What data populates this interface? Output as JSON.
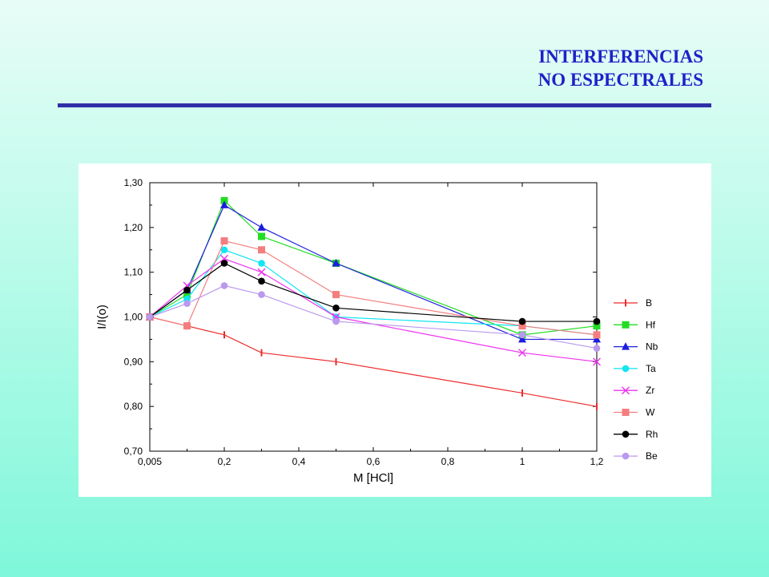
{
  "header": {
    "title_line1": "INTERFERENCIAS",
    "title_line2": "NO ESPECTRALES"
  },
  "colors": {
    "title": "#2020c8",
    "rule": "#2f2fa8"
  },
  "chart_data": {
    "type": "line",
    "xlabel": "M [HCl]",
    "ylabel": "I/I(o)",
    "xlim": [
      0,
      1.2
    ],
    "ylim": [
      0.7,
      1.3
    ],
    "x_ticks": [
      {
        "value": 0,
        "label": "0,005"
      },
      {
        "value": 0.2,
        "label": "0,2"
      },
      {
        "value": 0.4,
        "label": "0,4"
      },
      {
        "value": 0.6,
        "label": "0,6"
      },
      {
        "value": 0.8,
        "label": "0,8"
      },
      {
        "value": 1.0,
        "label": "1"
      },
      {
        "value": 1.2,
        "label": "1,2"
      }
    ],
    "y_ticks": [
      {
        "value": 0.7,
        "label": "0,70"
      },
      {
        "value": 0.8,
        "label": "0,80"
      },
      {
        "value": 0.9,
        "label": "0,90"
      },
      {
        "value": 1.0,
        "label": "1,00"
      },
      {
        "value": 1.1,
        "label": "1,10"
      },
      {
        "value": 1.2,
        "label": "1,20"
      },
      {
        "value": 1.3,
        "label": "1,30"
      }
    ],
    "x": [
      0,
      0.1,
      0.2,
      0.3,
      0.5,
      1.0,
      1.2
    ],
    "legend_position": "right",
    "grid": false,
    "series": [
      {
        "name": "B",
        "color": "#ee2b2b",
        "marker": "vbar",
        "values": [
          1.0,
          0.98,
          0.96,
          0.92,
          0.9,
          0.83,
          0.8
        ]
      },
      {
        "name": "Hf",
        "color": "#22dd22",
        "marker": "square",
        "values": [
          1.0,
          1.05,
          1.26,
          1.18,
          1.12,
          0.96,
          0.98
        ]
      },
      {
        "name": "Nb",
        "color": "#1e1ee0",
        "marker": "triangle",
        "values": [
          1.0,
          1.06,
          1.25,
          1.2,
          1.12,
          0.95,
          0.95
        ]
      },
      {
        "name": "Ta",
        "color": "#11e6f2",
        "marker": "circle",
        "values": [
          1.0,
          1.04,
          1.15,
          1.12,
          1.0,
          0.98,
          0.96
        ]
      },
      {
        "name": "Zr",
        "color": "#ee33ee",
        "marker": "x",
        "values": [
          1.0,
          1.07,
          1.13,
          1.1,
          1.0,
          0.92,
          0.9
        ]
      },
      {
        "name": "W",
        "color": "#f47e7e",
        "marker": "square",
        "values": [
          1.0,
          0.98,
          1.17,
          1.15,
          1.05,
          0.98,
          0.96
        ]
      },
      {
        "name": "Rh",
        "color": "#000000",
        "marker": "circle",
        "values": [
          1.0,
          1.06,
          1.12,
          1.08,
          1.02,
          0.99,
          0.99
        ]
      },
      {
        "name": "Be",
        "color": "#bb99ee",
        "marker": "circle",
        "values": [
          1.0,
          1.03,
          1.07,
          1.05,
          0.99,
          0.96,
          0.93
        ]
      }
    ]
  }
}
